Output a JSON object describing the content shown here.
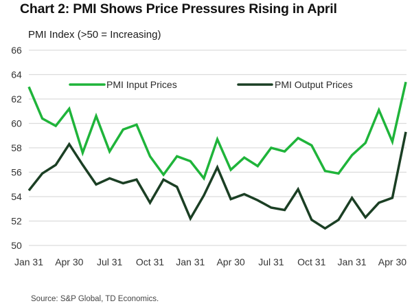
{
  "chart_data": {
    "type": "line",
    "title": "Chart 2: PMI Shows Price Pressures Rising in April",
    "ylabel": "PMI Index (>50 = Increasing)",
    "xlabel": "",
    "ylim": [
      50,
      66
    ],
    "yticks": [
      50,
      52,
      54,
      56,
      58,
      60,
      62,
      64,
      66
    ],
    "grid": true,
    "legend_position": "top",
    "x": [
      "Jan 2021",
      "Feb 2021",
      "Mar 2021",
      "Apr 2021",
      "May 2021",
      "Jun 2021",
      "Jul 2021",
      "Aug 2021",
      "Sep 2021",
      "Oct 2021",
      "Nov 2021",
      "Dec 2021",
      "Jan 2022",
      "Feb 2022",
      "Mar 2022",
      "Apr 2022",
      "May 2022",
      "Jun 2022",
      "Jul 2022",
      "Aug 2022",
      "Sep 2022",
      "Oct 2022",
      "Nov 2022",
      "Dec 2022",
      "Jan 2023",
      "Feb 2023",
      "Mar 2023",
      "Apr 2023",
      "May 2023"
    ],
    "xtick_labels": [
      {
        "index": 0,
        "label": "Jan 31"
      },
      {
        "index": 3,
        "label": "Apr 30"
      },
      {
        "index": 6,
        "label": "Jul 31"
      },
      {
        "index": 9,
        "label": "Oct 31"
      },
      {
        "index": 12,
        "label": "Jan 31"
      },
      {
        "index": 15,
        "label": "Apr 30"
      },
      {
        "index": 18,
        "label": "Jul 31"
      },
      {
        "index": 21,
        "label": "Oct 31"
      },
      {
        "index": 24,
        "label": "Jan 31"
      },
      {
        "index": 27,
        "label": "Apr 30"
      }
    ],
    "series": [
      {
        "name": "PMI Input Prices",
        "color": "#1fb43a",
        "values": [
          63.0,
          60.4,
          59.8,
          61.2,
          57.6,
          60.6,
          57.7,
          59.5,
          59.9,
          57.3,
          55.8,
          57.3,
          56.9,
          55.5,
          58.7,
          56.2,
          57.2,
          56.5,
          58.0,
          57.7,
          58.8,
          58.2,
          56.1,
          55.9,
          57.4,
          58.4,
          61.1,
          58.5,
          63.4
        ]
      },
      {
        "name": "PMI Output Prices",
        "color": "#1b3f24",
        "values": [
          54.5,
          55.9,
          56.6,
          58.3,
          56.6,
          55.0,
          55.5,
          55.1,
          55.4,
          53.5,
          55.4,
          54.8,
          52.2,
          54.1,
          56.4,
          53.8,
          54.2,
          53.7,
          53.1,
          52.9,
          54.6,
          52.1,
          51.4,
          52.1,
          53.9,
          52.3,
          53.5,
          53.9,
          59.3
        ]
      }
    ],
    "source": "Source: S&P Global, TD Economics."
  }
}
